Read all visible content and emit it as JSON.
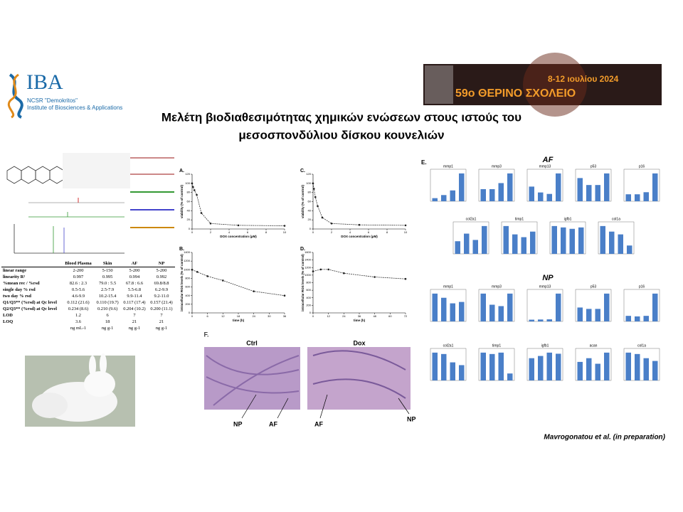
{
  "logo": {
    "name": "IBA",
    "line1": "NCSR \"Demokritos\"",
    "line2": "Institute of Biosciences & Applications"
  },
  "banner": {
    "dates": "8-12 ιουλίου 2024",
    "school": "59ο ΘΕΡΙΝΟ ΣΧΟΛΕΙΟ"
  },
  "title": {
    "line1": "Μελέτη βιοδιαθεσιμότητας χημικών ενώσεων στους ιστούς του",
    "line2": "μεσοσπονδύλιου δίσκου κουνελιών"
  },
  "table": {
    "header": [
      "Blood Plasma",
      "Skin",
      "AF",
      "NP"
    ],
    "rows": [
      [
        "linear range",
        "2-200",
        "5-150",
        "5-200",
        "5-200"
      ],
      [
        "linearity R²",
        "0.997",
        "0.995",
        "0.994",
        "0.992"
      ],
      [
        "%mean rec / %rsd",
        "82.6 : 2.3",
        "79.0 : 5.5",
        "67.8 : 6.6",
        "69.8/8.8"
      ],
      [
        "single day % rsd",
        "0.5-5.6",
        "2.5-7.9",
        "5.5-6.8",
        "6.2-9.9"
      ],
      [
        "two day % rsd",
        "4.6-9.9",
        "10.2-15.4",
        "9.9-11.4",
        "9.2-11.0"
      ],
      [
        "Q1/Q3** (%rsd) at Qc level",
        "0.112 (21.6)",
        "0.110 (19.7)",
        "0.117 (17.4)",
        "0.157 (21.4)"
      ],
      [
        "Q2/Q3** (%rsd) at Qc level",
        "0.234 (8.6)",
        "0.210 (9.6)",
        "0.204 (10.2)",
        "0.200 (11.1)"
      ],
      [
        "LOD",
        "1.2",
        "6",
        "7",
        "7"
      ],
      [
        "LOQ",
        "3.6",
        "18",
        "21",
        "21"
      ],
      [
        "",
        "ng mL-1",
        "ng g-1",
        "ng g-1",
        "ng g-1"
      ]
    ]
  },
  "line_panels": [
    {
      "label": "A.",
      "xlabel": "DOX concentration (μM)",
      "ylabel": "viability (% of control)",
      "x": [
        0,
        0.1,
        0.25,
        0.5,
        1,
        2,
        5,
        10
      ],
      "values": [
        100,
        92,
        85,
        75,
        35,
        12,
        8,
        7
      ],
      "xlim": [
        0,
        10
      ],
      "xticks": [
        0,
        2,
        4,
        6,
        8,
        10
      ],
      "ylim": [
        0,
        120
      ],
      "yticks": [
        0,
        20,
        40,
        60,
        80,
        100,
        120
      ]
    },
    {
      "label": "C.",
      "xlabel": "DOX concentration (μM)",
      "ylabel": "viability (% of control)",
      "x": [
        0,
        0.1,
        0.25,
        0.5,
        1,
        2,
        5,
        10
      ],
      "values": [
        100,
        88,
        70,
        50,
        25,
        12,
        9,
        8
      ],
      "xlim": [
        0,
        10
      ],
      "xticks": [
        0,
        2,
        4,
        6,
        8,
        10
      ],
      "ylim": [
        0,
        120
      ],
      "yticks": [
        0,
        20,
        40,
        60,
        80,
        100,
        120
      ]
    },
    {
      "label": "B.",
      "xlabel": "time (h)",
      "ylabel": "intracellular ROS levels (% of control)",
      "x": [
        0,
        2,
        6,
        12,
        24,
        36
      ],
      "values": [
        1000,
        950,
        850,
        750,
        500,
        400
      ],
      "xlim": [
        0,
        36
      ],
      "xticks": [
        0,
        6,
        12,
        18,
        24,
        30,
        36
      ],
      "ylim": [
        0,
        1400
      ],
      "yticks": [
        0,
        200,
        400,
        600,
        800,
        1000,
        1200,
        1400
      ]
    },
    {
      "label": "D.",
      "xlabel": "time (h)",
      "ylabel": "intracellular ROS levels (% of control)",
      "x": [
        0,
        6,
        12,
        24,
        48,
        72
      ],
      "values": [
        1100,
        1150,
        1150,
        1050,
        950,
        900
      ],
      "xlim": [
        0,
        72
      ],
      "xticks": [
        0,
        12,
        24,
        36,
        48,
        60,
        72
      ],
      "ylim": [
        0,
        1600
      ],
      "yticks": [
        0,
        200,
        400,
        600,
        800,
        1000,
        1200,
        1400,
        1600
      ]
    }
  ],
  "panel_e": {
    "label": "E.",
    "af": "AF",
    "np": "NP",
    "af_charts": [
      {
        "title": "mmp1",
        "values": [
          1,
          2,
          3.5,
          9
        ]
      },
      {
        "title": "mmp3",
        "values": [
          1,
          1,
          1.5,
          2.3
        ]
      },
      {
        "title": "mmp13",
        "values": [
          1,
          0.6,
          0.5,
          1.9
        ]
      },
      {
        "title": "p53",
        "values": [
          1,
          0.7,
          0.7,
          1.2
        ]
      },
      {
        "title": "p16",
        "values": [
          1,
          1,
          1.3,
          4
        ]
      },
      {
        "title": "col2a1",
        "values": [
          1,
          1.6,
          1.1,
          2.2
        ]
      },
      {
        "title": "timp1",
        "values": [
          1,
          0.7,
          0.6,
          0.8
        ]
      },
      {
        "title": "igfb1",
        "values": [
          1,
          0.95,
          0.9,
          0.95
        ]
      },
      {
        "title": "col1a",
        "values": [
          1,
          0.8,
          0.7,
          0.3
        ]
      }
    ],
    "np_charts": [
      {
        "title": "mmp1",
        "values": [
          1,
          0.85,
          0.65,
          0.7
        ]
      },
      {
        "title": "mmp3",
        "values": [
          1,
          0.6,
          0.55,
          1
        ]
      },
      {
        "title": "mmp13",
        "values": [
          1,
          1.1,
          1.2,
          16
        ]
      },
      {
        "title": "p53",
        "values": [
          1,
          0.9,
          0.9,
          2
        ]
      },
      {
        "title": "p16",
        "values": [
          1,
          0.9,
          1,
          5
        ]
      },
      {
        "title": "col2a1",
        "values": [
          1,
          0.95,
          0.65,
          0.55
        ]
      },
      {
        "title": "timp1",
        "values": [
          1,
          0.95,
          1,
          0.25
        ]
      },
      {
        "title": "igfb1",
        "values": [
          1,
          1.1,
          1.25,
          1.2
        ]
      },
      {
        "title": "acan",
        "values": [
          1,
          1.2,
          0.9,
          1.5
        ]
      },
      {
        "title": "col1a",
        "values": [
          1,
          0.95,
          0.8,
          0.7
        ]
      }
    ]
  },
  "panel_f": {
    "label": "F.",
    "left": "Ctrl",
    "right": "Dox",
    "left_labels": [
      "NP",
      "AF"
    ],
    "right_labels": [
      "AF",
      "NP"
    ]
  },
  "citation": "Mavrogonatou et al. (in preparation)"
}
